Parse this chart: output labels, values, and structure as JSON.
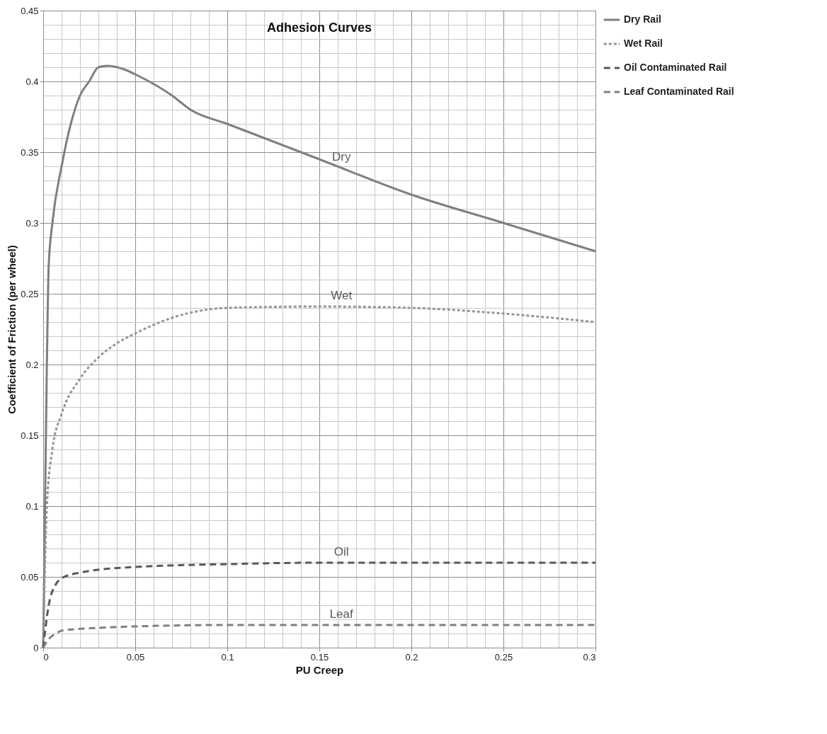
{
  "chart_data": {
    "type": "line",
    "title": "Adhesion Curves",
    "xlabel": "PU Creep",
    "ylabel": "Coefficient of Friction (per wheel)",
    "series": [
      {
        "name": "Dry Rail",
        "color": "#7f7f7f",
        "line_style": "solid",
        "x": [
          0,
          0.001,
          0.002,
          0.003,
          0.005,
          0.01,
          0.015,
          0.02,
          0.025,
          0.03,
          0.035,
          0.045,
          0.05,
          0.07,
          0.08,
          0.1,
          0.15,
          0.2,
          0.25,
          0.3
        ],
        "values": [
          0,
          0.1,
          0.2,
          0.27,
          0.3,
          0.34,
          0.37,
          0.39,
          0.4,
          0.41,
          0.411,
          0.408,
          0.405,
          0.39,
          0.38,
          0.37,
          0.345,
          0.32,
          0.3,
          0.28
        ]
      },
      {
        "name": "Wet Rail",
        "color": "#969696",
        "line_style": "dotted",
        "x": [
          0,
          0.002,
          0.005,
          0.01,
          0.02,
          0.03,
          0.04,
          0.05,
          0.07,
          0.1,
          0.15,
          0.2,
          0.25,
          0.3
        ],
        "values": [
          0,
          0.1,
          0.14,
          0.165,
          0.19,
          0.205,
          0.215,
          0.222,
          0.233,
          0.24,
          0.241,
          0.24,
          0.236,
          0.23
        ]
      },
      {
        "name": "Oil Contaminated Rail",
        "color": "#595959",
        "line_style": "dashed",
        "x": [
          0,
          0.003,
          0.007,
          0.01,
          0.02,
          0.05,
          0.1,
          0.15,
          0.3
        ],
        "values": [
          0,
          0.03,
          0.045,
          0.049,
          0.053,
          0.057,
          0.059,
          0.06,
          0.06
        ]
      },
      {
        "name": "Leaf Contaminated Rail",
        "color": "#808080",
        "line_style": "dashed",
        "x": [
          0,
          0.003,
          0.007,
          0.01,
          0.03,
          0.05,
          0.1,
          0.2,
          0.3
        ],
        "values": [
          0,
          0.006,
          0.01,
          0.012,
          0.014,
          0.015,
          0.016,
          0.016,
          0.016
        ]
      }
    ],
    "annotations": [
      "Dry",
      "Wet",
      "Oil",
      "Leaf"
    ],
    "xlim": [
      0,
      0.3
    ],
    "xticks": [
      0,
      {
        "value": 0.01,
        "label": null
      },
      {
        "value": 0.02,
        "label": null
      },
      {
        "value": 0.03,
        "label": null
      },
      {
        "value": 0.04,
        "label": null
      },
      0.05,
      {
        "value": 0.06,
        "label": null
      },
      {
        "value": 0.07,
        "label": null
      },
      {
        "value": 0.08,
        "label": null
      },
      {
        "value": 0.09,
        "label": null
      },
      0.1,
      {
        "value": 0.11,
        "label": null
      },
      {
        "value": 0.12,
        "label": null
      },
      {
        "value": 0.13,
        "label": null
      },
      {
        "value": 0.14,
        "label": null
      },
      0.15,
      {
        "value": 0.16,
        "label": null
      },
      {
        "value": 0.17,
        "label": null
      },
      {
        "value": 0.18,
        "label": null
      },
      {
        "value": 0.19,
        "label": null
      },
      0.2,
      {
        "value": 0.21,
        "label": null
      },
      {
        "value": 0.22,
        "label": null
      },
      {
        "value": 0.23,
        "label": null
      },
      {
        "value": 0.24,
        "label": null
      },
      0.25,
      {
        "value": 0.26,
        "label": null
      },
      {
        "value": 0.27,
        "label": null
      },
      {
        "value": 0.28,
        "label": null
      },
      {
        "value": 0.29,
        "label": null
      },
      0.3
    ],
    "ylim": [
      0,
      0.45
    ],
    "yticks": [
      0,
      {
        "value": 0.01,
        "label": null
      },
      {
        "value": 0.02,
        "label": null
      },
      {
        "value": 0.03,
        "label": null
      },
      {
        "value": 0.04,
        "label": null
      },
      0.05,
      {
        "value": 0.06,
        "label": null
      },
      {
        "value": 0.07,
        "label": null
      },
      {
        "value": 0.08,
        "label": null
      },
      {
        "value": 0.09,
        "label": null
      },
      0.1,
      {
        "value": 0.11,
        "label": null
      },
      {
        "value": 0.12,
        "label": null
      },
      {
        "value": 0.13,
        "label": null
      },
      {
        "value": 0.14,
        "label": null
      },
      0.15,
      {
        "value": 0.16,
        "label": null
      },
      {
        "value": 0.17,
        "label": null
      },
      {
        "value": 0.18,
        "label": null
      },
      {
        "value": 0.19,
        "label": null
      },
      0.2,
      {
        "value": 0.21,
        "label": null
      },
      {
        "value": 0.22,
        "label": null
      },
      {
        "value": 0.23,
        "label": null
      },
      {
        "value": 0.24,
        "label": null
      },
      0.25,
      {
        "value": 0.26,
        "label": null
      },
      {
        "value": 0.27,
        "label": null
      },
      {
        "value": 0.28,
        "label": null
      },
      {
        "value": 0.29,
        "label": null
      },
      0.3,
      {
        "value": 0.31,
        "label": null
      },
      {
        "value": 0.32,
        "label": null
      },
      {
        "value": 0.33,
        "label": null
      },
      {
        "value": 0.34,
        "label": null
      },
      0.35,
      {
        "value": 0.36,
        "label": null
      },
      {
        "value": 0.37,
        "label": null
      },
      {
        "value": 0.38,
        "label": null
      },
      {
        "value": 0.39,
        "label": null
      },
      0.4,
      {
        "value": 0.41,
        "label": null
      },
      {
        "value": 0.42,
        "label": null
      },
      {
        "value": 0.43,
        "label": null
      },
      {
        "value": 0.44,
        "label": null
      },
      0.45
    ],
    "grid": true,
    "legend": "right",
    "marker": "none"
  }
}
